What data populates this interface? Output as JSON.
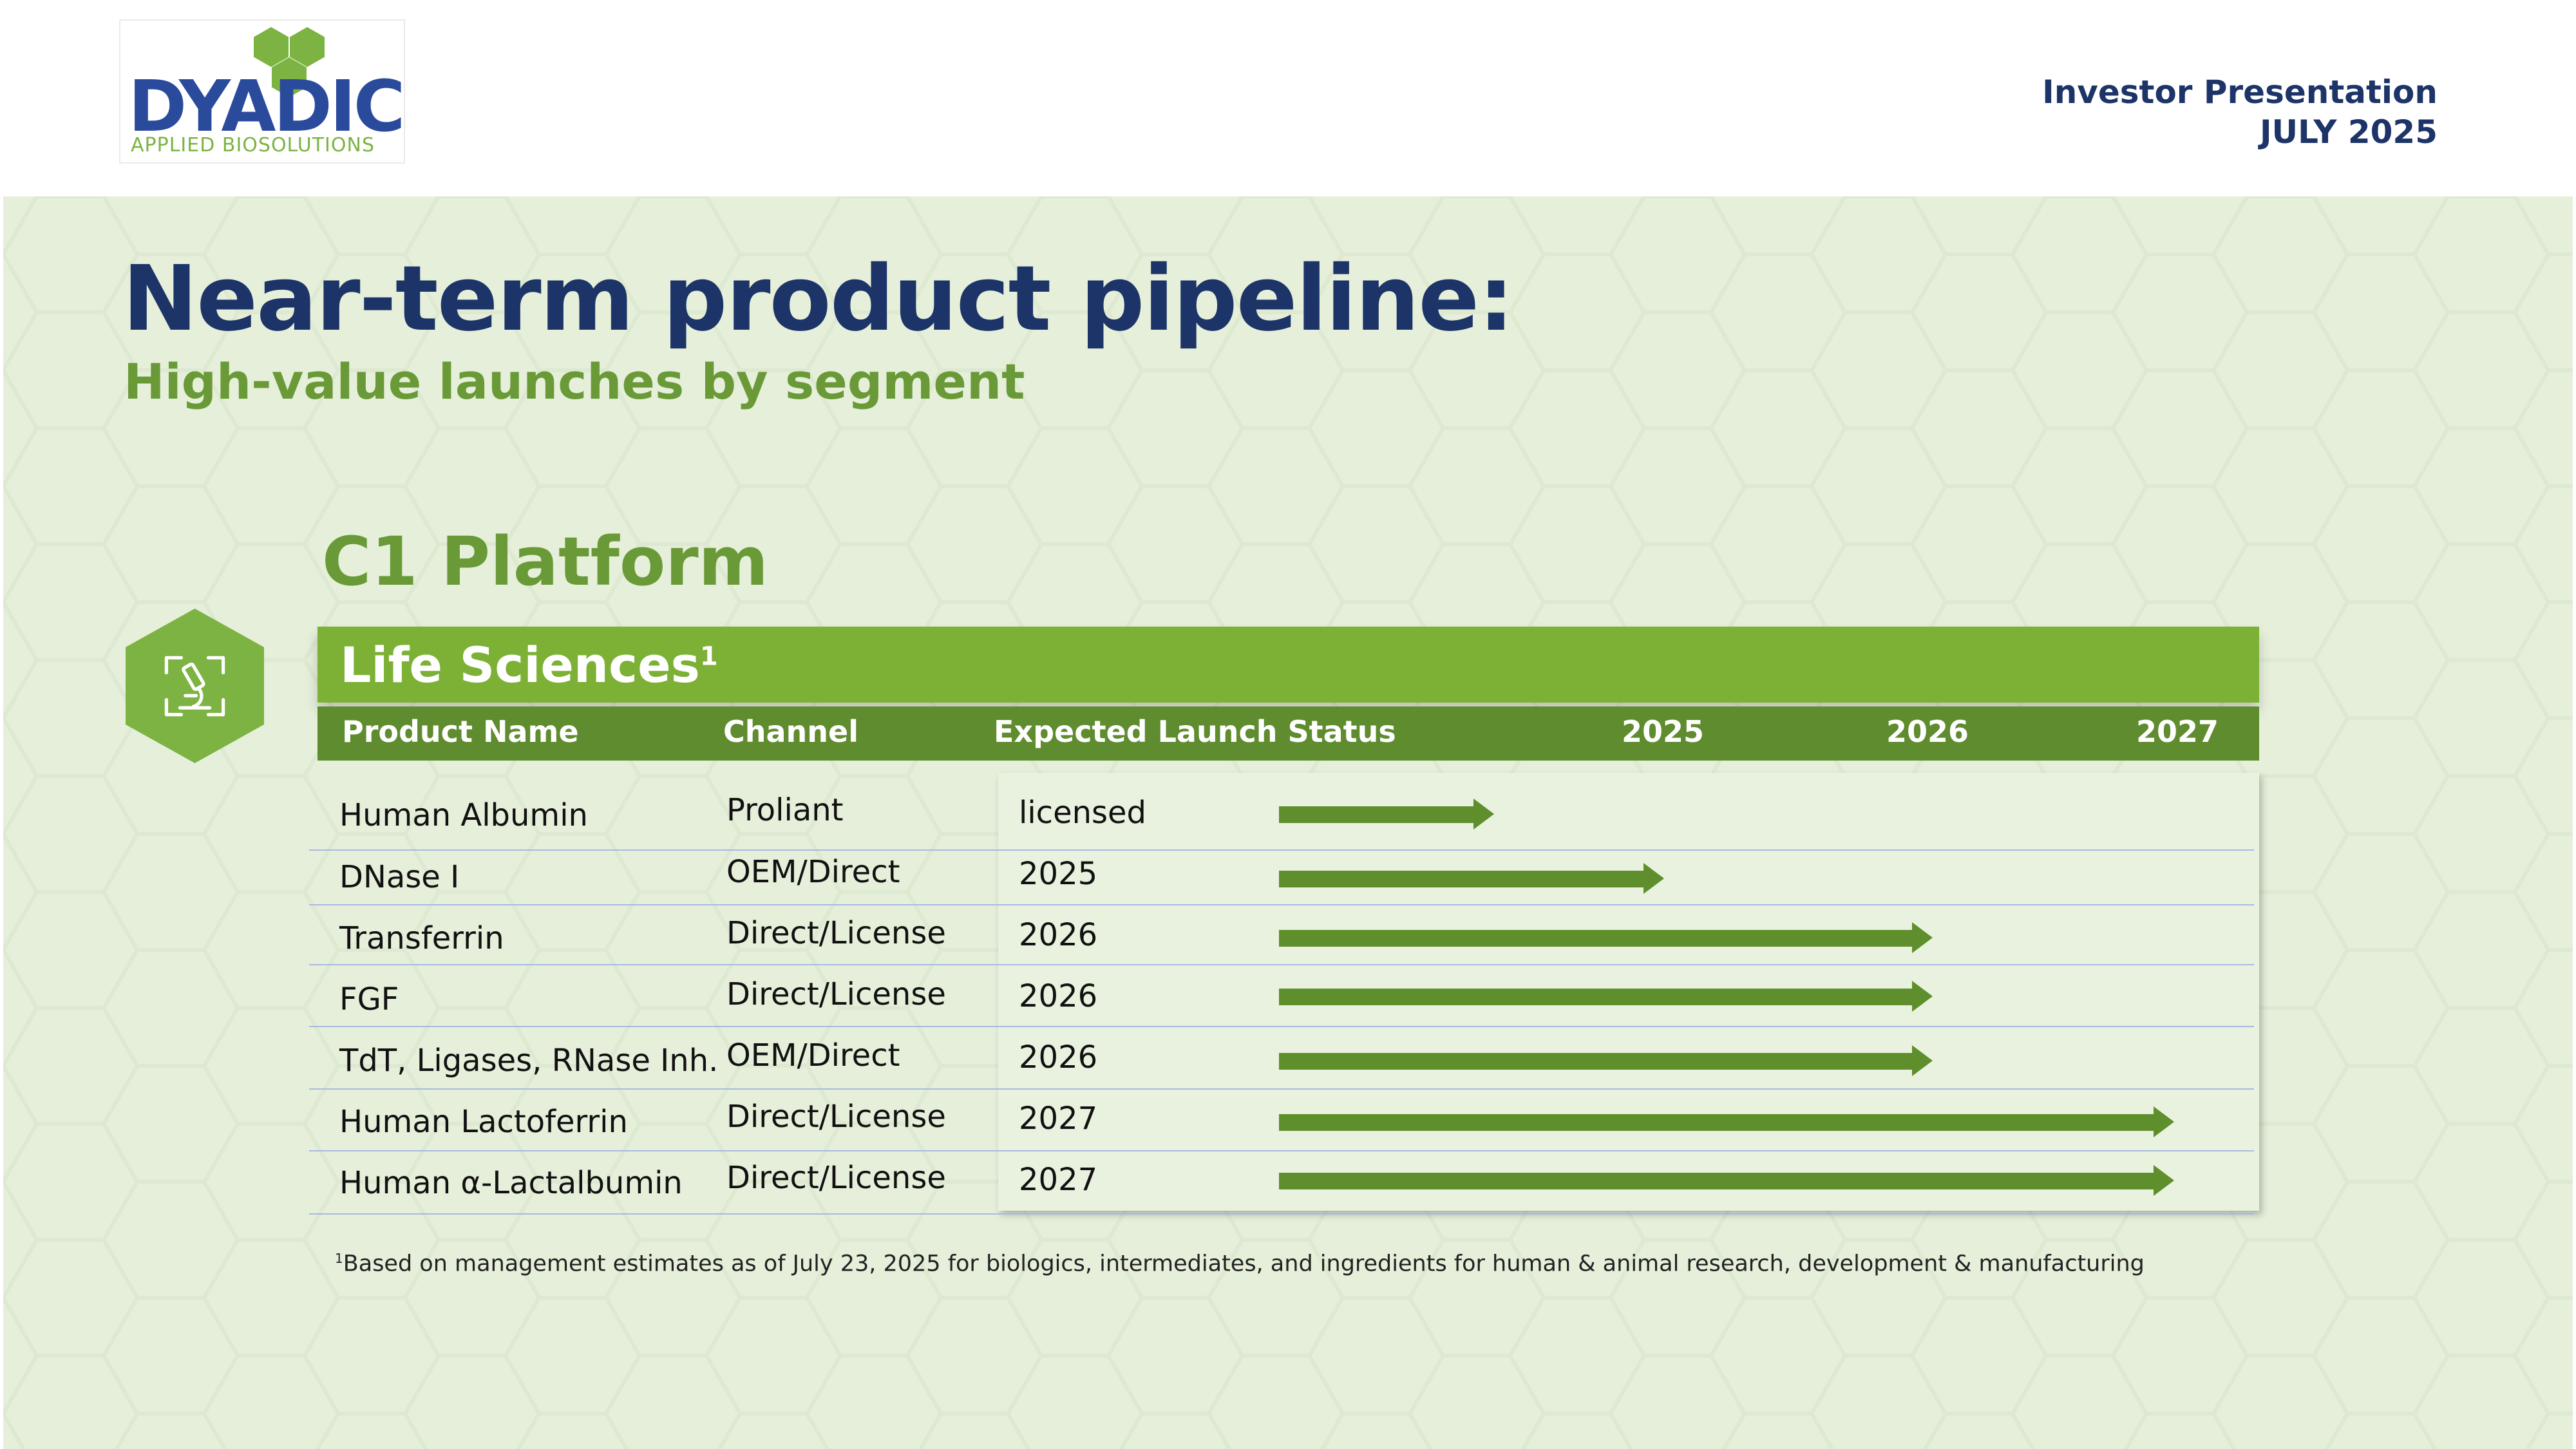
{
  "brand": {
    "logo_text": "DYADIC",
    "logo_subtitle": "APPLIED BIOSOLUTIONS",
    "accent_green": "#7cb136",
    "dark_blue": "#1d3468"
  },
  "header": {
    "line1": "Investor Presentation",
    "line2": "JULY 2025"
  },
  "slide": {
    "title": "Near-term product pipeline:",
    "subtitle": "High-value launches by segment",
    "platform": "C1 Platform",
    "segment_icon": "microscope-icon"
  },
  "table": {
    "segment_label": "Life Sciences",
    "segment_footnote_mark": "1",
    "columns": {
      "product": "Product Name",
      "channel": "Channel",
      "status": "Expected Launch Status",
      "y2025": "2025",
      "y2026": "2026",
      "y2027": "2027"
    },
    "rows": [
      {
        "product": "Human Albumin",
        "channel": "Proliant",
        "status": "licensed",
        "progress": 0.24
      },
      {
        "product": "DNase I",
        "channel": "OEM/Direct",
        "status": "2025",
        "progress": 0.43
      },
      {
        "product": "Transferrin",
        "channel": "Direct/License",
        "status": "2026",
        "progress": 0.73
      },
      {
        "product": "FGF",
        "channel": "Direct/License",
        "status": "2026",
        "progress": 0.73
      },
      {
        "product": "TdT, Ligases, RNase Inh.",
        "channel": "OEM/Direct",
        "status": "2026",
        "progress": 0.73
      },
      {
        "product": "Human Lactoferrin",
        "channel": "Direct/License",
        "status": "2027",
        "progress": 1.0
      },
      {
        "product": "Human α-Lactalbumin",
        "channel": "Direct/License",
        "status": "2027",
        "progress": 1.0
      }
    ]
  },
  "footnote": {
    "mark": "1",
    "text": "Based on management estimates as of July 23, 2025 for biologics, intermediates, and ingredients for human & animal research, development & manufacturing"
  }
}
